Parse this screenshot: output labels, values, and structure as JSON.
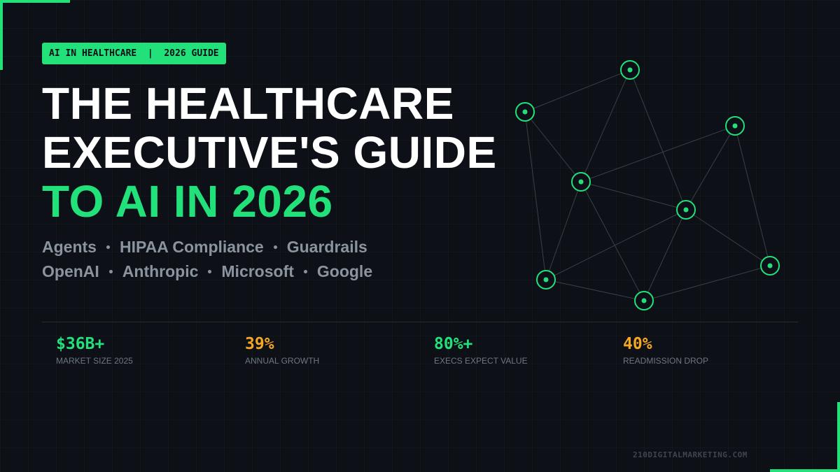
{
  "badge": "AI IN HEALTHCARE  |  2026 GUIDE",
  "title": {
    "lines": [
      "THE HEALTHCARE",
      "EXECUTIVE'S GUIDE"
    ],
    "highlight": "TO AI IN 2026"
  },
  "tags": [
    [
      "Agents",
      "HIPAA Compliance",
      "Guardrails"
    ],
    [
      "OpenAI",
      "Anthropic",
      "Microsoft",
      "Google"
    ]
  ],
  "stats": [
    {
      "value": "$36B+",
      "label": "MARKET SIZE 2025"
    },
    {
      "value": "39%",
      "label": "ANNUAL GROWTH"
    },
    {
      "value": "80%+",
      "label": "EXECS EXPECT VALUE"
    },
    {
      "value": "40%",
      "label": "READMISSION DROP"
    }
  ],
  "footer": "210DIGITALMARKETING.COM"
}
